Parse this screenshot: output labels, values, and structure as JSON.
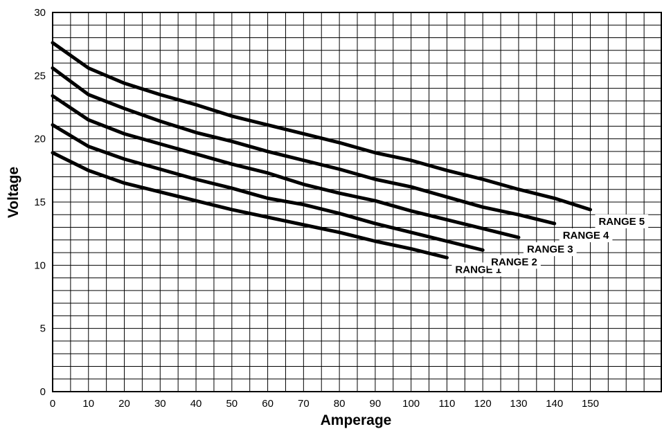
{
  "chart_data": {
    "type": "line",
    "title": "",
    "xlabel": "Amperage",
    "ylabel": "Voltage",
    "xlim": [
      0,
      170
    ],
    "ylim": [
      0,
      30
    ],
    "grid": true,
    "legend": "inline labels at line ends",
    "x_ticks": [
      "0",
      "10",
      "20",
      "30",
      "40",
      "50",
      "60",
      "70",
      "80",
      "90",
      "100",
      "110",
      "120",
      "130",
      "140",
      "150"
    ],
    "y_ticks": [
      "0",
      "5",
      "10",
      "15",
      "20",
      "25",
      "30"
    ],
    "line_color": "#000000",
    "series": [
      {
        "name": "RANGE 1",
        "x": [
          0,
          10,
          20,
          30,
          40,
          50,
          60,
          70,
          80,
          90,
          100,
          110
        ],
        "y": [
          18.9,
          17.5,
          16.5,
          15.8,
          15.1,
          14.4,
          13.8,
          13.2,
          12.6,
          11.9,
          11.3,
          10.6
        ]
      },
      {
        "name": "RANGE 2",
        "x": [
          0,
          10,
          20,
          30,
          40,
          50,
          60,
          70,
          80,
          90,
          100,
          110,
          120
        ],
        "y": [
          21.1,
          19.4,
          18.4,
          17.6,
          16.8,
          16.1,
          15.3,
          14.8,
          14.1,
          13.3,
          12.6,
          11.9,
          11.2
        ]
      },
      {
        "name": "RANGE 3",
        "x": [
          0,
          10,
          20,
          30,
          40,
          50,
          60,
          70,
          80,
          90,
          100,
          110,
          120,
          130
        ],
        "y": [
          23.4,
          21.5,
          20.4,
          19.6,
          18.8,
          18.0,
          17.3,
          16.4,
          15.7,
          15.1,
          14.3,
          13.6,
          12.9,
          12.2
        ]
      },
      {
        "name": "RANGE 4",
        "x": [
          0,
          10,
          20,
          30,
          40,
          50,
          60,
          70,
          80,
          90,
          100,
          110,
          120,
          130,
          140
        ],
        "y": [
          25.6,
          23.5,
          22.4,
          21.4,
          20.5,
          19.8,
          19.0,
          18.3,
          17.6,
          16.8,
          16.2,
          15.4,
          14.6,
          14.0,
          13.3
        ]
      },
      {
        "name": "RANGE 5",
        "x": [
          0,
          10,
          20,
          30,
          40,
          50,
          60,
          70,
          80,
          90,
          100,
          110,
          120,
          130,
          140,
          150
        ],
        "y": [
          27.6,
          25.6,
          24.4,
          23.5,
          22.7,
          21.8,
          21.1,
          20.4,
          19.7,
          18.9,
          18.3,
          17.5,
          16.8,
          16.0,
          15.3,
          14.4
        ]
      }
    ]
  }
}
